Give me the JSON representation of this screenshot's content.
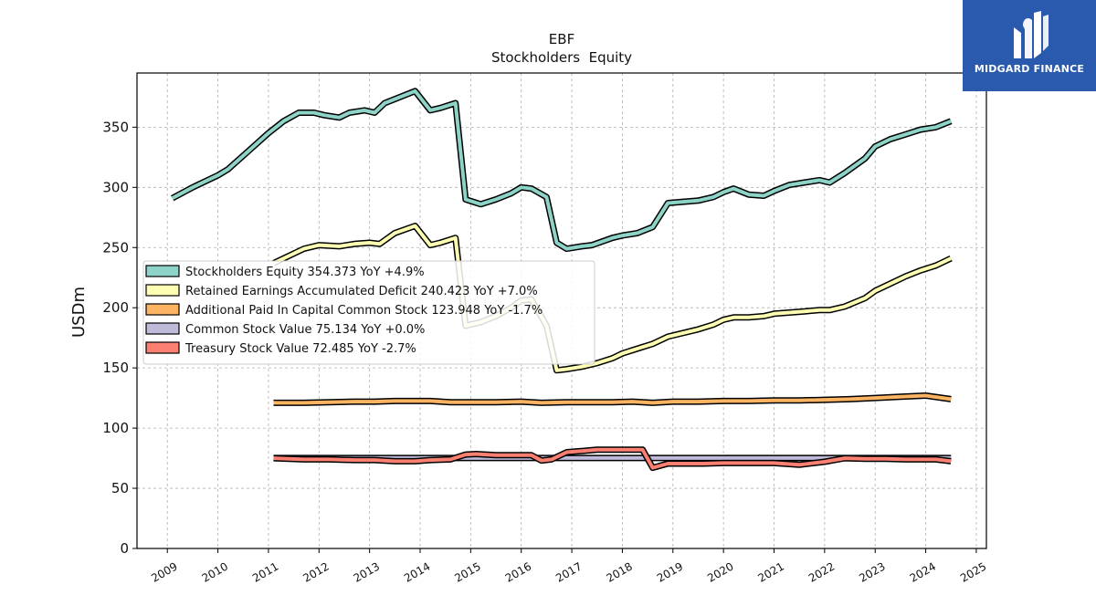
{
  "chart_data": {
    "type": "line",
    "title": "EBF",
    "subtitle": "Stockholders  Equity",
    "ylabel": "USDm",
    "xlabel": "",
    "xlim": [
      2008.4,
      2025.2
    ],
    "ylim": [
      0,
      395
    ],
    "yticks": [
      0,
      50,
      100,
      150,
      200,
      250,
      300,
      350
    ],
    "xticks": [
      "2009",
      "2010",
      "2011",
      "2012",
      "2013",
      "2014",
      "2015",
      "2016",
      "2017",
      "2018",
      "2019",
      "2020",
      "2021",
      "2022",
      "2023",
      "2024",
      "2025"
    ],
    "grid": true,
    "legend_position": "center-left",
    "series": [
      {
        "name": "Stockholders Equity",
        "legend": "Stockholders Equity  354.373 YoY +4.9%",
        "color": "#8dd3c7",
        "x": [
          2009.1,
          2009.5,
          2010.0,
          2010.2,
          2010.6,
          2011.0,
          2011.3,
          2011.6,
          2011.9,
          2012.1,
          2012.4,
          2012.6,
          2012.9,
          2013.1,
          2013.3,
          2013.6,
          2013.9,
          2014.2,
          2014.4,
          2014.7,
          2014.9,
          2015.2,
          2015.5,
          2015.8,
          2016.0,
          2016.2,
          2016.5,
          2016.7,
          2016.9,
          2017.2,
          2017.4,
          2017.8,
          2018.0,
          2018.3,
          2018.6,
          2018.9,
          2019.2,
          2019.5,
          2019.8,
          2020.0,
          2020.2,
          2020.5,
          2020.8,
          2021.0,
          2021.3,
          2021.6,
          2021.9,
          2022.1,
          2022.4,
          2022.8,
          2023.0,
          2023.3,
          2023.6,
          2023.9,
          2024.2,
          2024.5
        ],
        "values": [
          291,
          300,
          310,
          315,
          330,
          345,
          355,
          362,
          362,
          360,
          358,
          362,
          364,
          362,
          370,
          375,
          380,
          364,
          366,
          370,
          290,
          286,
          290,
          295,
          300,
          299,
          292,
          254,
          249,
          251,
          252,
          258,
          260,
          262,
          267,
          287,
          288,
          289,
          292,
          296,
          299,
          294,
          293,
          297,
          302,
          304,
          306,
          304,
          312,
          324,
          334,
          340,
          344,
          348,
          350,
          355
        ]
      },
      {
        "name": "Retained Earnings Accumulated Deficit",
        "legend": "Retained Earnings Accumulated Deficit  240.423 YoY +7.0%",
        "color": "#ffffb3",
        "x": [
          2011.1,
          2011.4,
          2011.7,
          2012.0,
          2012.4,
          2012.7,
          2013.0,
          2013.2,
          2013.5,
          2013.9,
          2014.2,
          2014.4,
          2014.7,
          2014.9,
          2015.2,
          2015.5,
          2015.8,
          2016.0,
          2016.2,
          2016.5,
          2016.7,
          2016.9,
          2017.2,
          2017.5,
          2017.8,
          2018.0,
          2018.3,
          2018.6,
          2018.9,
          2019.2,
          2019.5,
          2019.8,
          2020.0,
          2020.2,
          2020.5,
          2020.8,
          2021.0,
          2021.3,
          2021.6,
          2021.9,
          2022.1,
          2022.4,
          2022.8,
          2023.0,
          2023.3,
          2023.6,
          2023.9,
          2024.2,
          2024.5
        ],
        "values": [
          237,
          243,
          249,
          252,
          251,
          253,
          254,
          253,
          262,
          268,
          252,
          254,
          258,
          185,
          188,
          193,
          200,
          206,
          207,
          185,
          148,
          149,
          151,
          154,
          158,
          162,
          166,
          170,
          176,
          179,
          182,
          186,
          190,
          192,
          192,
          193,
          195,
          196,
          197,
          198,
          198,
          201,
          208,
          214,
          220,
          226,
          231,
          235,
          241
        ]
      },
      {
        "name": "Additional Paid In Capital Common Stock",
        "legend": "Additional Paid In Capital Common Stock  123.948 YoY -1.7%",
        "color": "#fdb462",
        "x": [
          2011.1,
          2011.7,
          2012.2,
          2012.7,
          2013.1,
          2013.5,
          2013.9,
          2014.2,
          2014.6,
          2015.0,
          2015.5,
          2016.0,
          2016.4,
          2016.9,
          2017.3,
          2017.8,
          2018.2,
          2018.6,
          2019.0,
          2019.5,
          2020.0,
          2020.5,
          2021.0,
          2021.5,
          2022.0,
          2022.5,
          2023.0,
          2023.5,
          2024.0,
          2024.5
        ],
        "values": [
          121,
          121,
          121.5,
          122,
          122,
          122.5,
          122.5,
          122.5,
          121.5,
          121.5,
          121.5,
          122,
          121,
          121.5,
          121.5,
          121.5,
          122,
          121,
          122,
          122,
          122.5,
          122.5,
          123,
          123,
          123.5,
          124,
          125,
          126,
          127,
          124
        ]
      },
      {
        "name": "Common Stock Value",
        "legend": "Common Stock Value  75.134 YoY +0.0%",
        "color": "#bebada",
        "x": [
          2011.1,
          2024.5
        ],
        "values": [
          75.134,
          75.134
        ]
      },
      {
        "name": "Treasury Stock Value",
        "legend": "Treasury Stock Value  72.485 YoY -2.7%",
        "color": "#fb8072",
        "x": [
          2011.1,
          2011.7,
          2012.2,
          2012.7,
          2013.1,
          2013.5,
          2013.9,
          2014.2,
          2014.6,
          2014.9,
          2015.1,
          2015.5,
          2016.0,
          2016.2,
          2016.4,
          2016.6,
          2016.9,
          2017.2,
          2017.5,
          2017.8,
          2018.2,
          2018.4,
          2018.6,
          2018.9,
          2019.2,
          2019.6,
          2020.0,
          2020.5,
          2021.0,
          2021.5,
          2022.0,
          2022.4,
          2022.8,
          2023.2,
          2023.6,
          2024.0,
          2024.2,
          2024.5
        ],
        "values": [
          75,
          74,
          74,
          73.5,
          73.5,
          72.5,
          72.5,
          73.5,
          74,
          78,
          78.5,
          77.5,
          77.5,
          77.5,
          73,
          74,
          80,
          81,
          82,
          82,
          82,
          82,
          67,
          70.5,
          70.5,
          70.5,
          71,
          71,
          71,
          69.5,
          72,
          75,
          74.5,
          74.5,
          74,
          74,
          74,
          72.5
        ]
      }
    ]
  },
  "logo": {
    "text": "MIDGARD FINANCE",
    "background": "#2a5aad"
  }
}
